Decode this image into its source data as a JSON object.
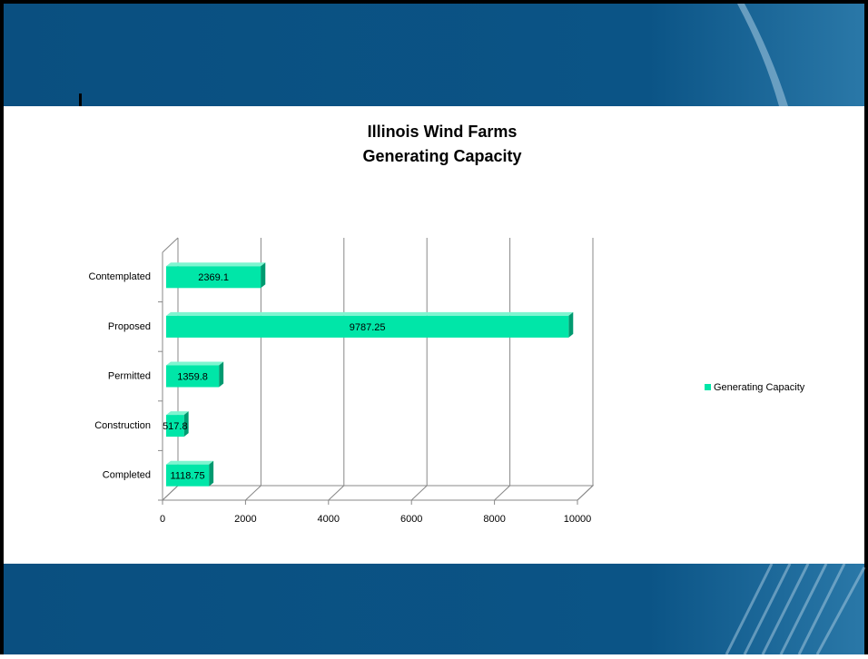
{
  "chart_data": {
    "type": "bar",
    "orientation": "horizontal",
    "title": "Illinois Wind Farms",
    "subtitle": "Generating Capacity",
    "categories": [
      "Completed",
      "Construction",
      "Permitted",
      "Proposed",
      "Contemplated"
    ],
    "series": [
      {
        "name": "Generating Capacity",
        "color": "#00e6a8",
        "values": [
          1118.75,
          517.8,
          1359.8,
          9787.25,
          2369.1
        ]
      }
    ],
    "xlim": [
      0,
      10000
    ],
    "xticks": [
      0,
      2000,
      4000,
      6000,
      8000,
      10000
    ],
    "grid": true,
    "legend": "right"
  }
}
